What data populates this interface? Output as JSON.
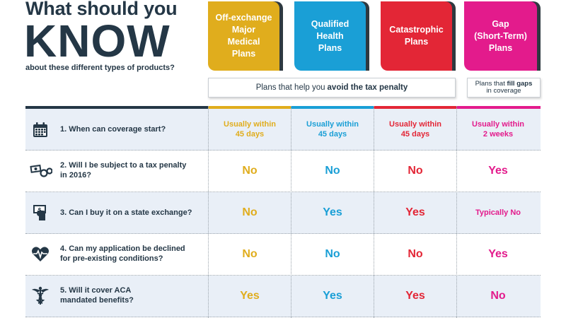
{
  "title": {
    "line1": "What should you",
    "line2": "KNOW",
    "line3": "about these different types of products?"
  },
  "colors": {
    "off_exchange": "#e0ad1d",
    "qualified": "#1a9fd6",
    "catastrophic": "#e32636",
    "gap": "#e31b8c",
    "navy": "#243746"
  },
  "cards": [
    {
      "label": "Off-exchange\nMajor\nMedical\nPlans",
      "color": "#e0ad1d"
    },
    {
      "label": "Qualified\nHealth\nPlans",
      "color": "#1a9fd6"
    },
    {
      "label": "Catastrophic\nPlans",
      "color": "#e32636"
    },
    {
      "label": "Gap\n(Short-Term)\nPlans",
      "color": "#e31b8c"
    }
  ],
  "avoid_box": {
    "prefix": "Plans that help you",
    "bold": "avoid the tax penalty"
  },
  "gap_box": {
    "prefix": "Plans that",
    "bold": "fill gaps",
    "suffix": "in coverage"
  },
  "rows": [
    {
      "icon": "calendar-icon",
      "question": "1. When can coverage start?",
      "answers": [
        "Usually within\n45 days",
        "Usually within\n45 days",
        "Usually within\n45 days",
        "Usually within\n2 weeks"
      ]
    },
    {
      "icon": "money-handcuffs-icon",
      "question": "2. Will I be subject to a tax penalty\n    in 2016?",
      "answers": [
        "No",
        "No",
        "No",
        "Yes"
      ]
    },
    {
      "icon": "hand-money-icon",
      "question": "3. Can I buy it on a state exchange?",
      "answers": [
        "No",
        "Yes",
        "Yes",
        "Typically No"
      ]
    },
    {
      "icon": "heart-pulse-icon",
      "question": "4. Can my application be declined\n    for pre-existing conditions?",
      "answers": [
        "No",
        "No",
        "No",
        "Yes"
      ]
    },
    {
      "icon": "caduceus-icon",
      "question": "5. Will it cover ACA\n    mandated benefits?",
      "answers": [
        "Yes",
        "Yes",
        "Yes",
        "No"
      ]
    }
  ]
}
